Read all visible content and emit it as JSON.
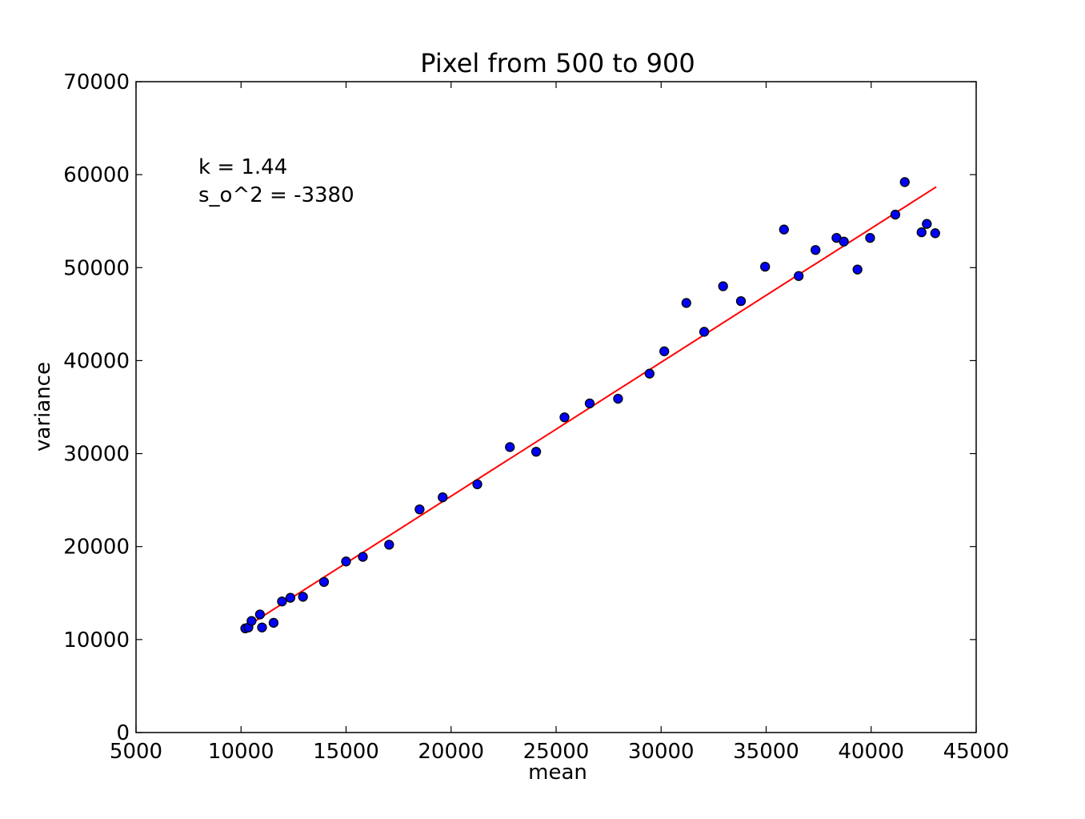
{
  "chart_data": {
    "type": "scatter",
    "title": "Pixel from 500 to 900",
    "xlabel": "mean",
    "ylabel": "variance",
    "xlim": [
      5000,
      45000
    ],
    "ylim": [
      0,
      70000
    ],
    "xticks": [
      5000,
      10000,
      15000,
      20000,
      25000,
      30000,
      35000,
      40000,
      45000
    ],
    "yticks": [
      0,
      10000,
      20000,
      30000,
      40000,
      50000,
      60000,
      70000
    ],
    "annotations": [
      "k = 1.44",
      "s_o^2 = -3380"
    ],
    "grid": false,
    "series": [
      {
        "type": "scatter",
        "color": "#0000ff",
        "points": [
          [
            10200,
            11200
          ],
          [
            10350,
            11300
          ],
          [
            10500,
            12000
          ],
          [
            10900,
            12700
          ],
          [
            11000,
            11300
          ],
          [
            11550,
            11800
          ],
          [
            11950,
            14100
          ],
          [
            12350,
            14500
          ],
          [
            12950,
            14600
          ],
          [
            13950,
            16200
          ],
          [
            15000,
            18400
          ],
          [
            15800,
            18900
          ],
          [
            17050,
            20200
          ],
          [
            18500,
            24000
          ],
          [
            19600,
            25300
          ],
          [
            21250,
            26700
          ],
          [
            22800,
            30700
          ],
          [
            24050,
            30200
          ],
          [
            25400,
            33900
          ],
          [
            26600,
            35400
          ],
          [
            27950,
            35900
          ],
          [
            29450,
            38600
          ],
          [
            30150,
            41000
          ],
          [
            31200,
            46200
          ],
          [
            32050,
            43100
          ],
          [
            32950,
            48000
          ],
          [
            33800,
            46400
          ],
          [
            34950,
            50100
          ],
          [
            35850,
            54100
          ],
          [
            36550,
            49100
          ],
          [
            37350,
            51900
          ],
          [
            38350,
            53200
          ],
          [
            38700,
            52800
          ],
          [
            39350,
            49800
          ],
          [
            39950,
            53200
          ],
          [
            41150,
            55700
          ],
          [
            41600,
            59200
          ],
          [
            42400,
            53800
          ],
          [
            42650,
            54700
          ],
          [
            43050,
            53700
          ]
        ]
      },
      {
        "type": "line",
        "color": "#ff0000",
        "points": [
          [
            10200,
            11308
          ],
          [
            43100,
            58684
          ]
        ]
      }
    ]
  }
}
